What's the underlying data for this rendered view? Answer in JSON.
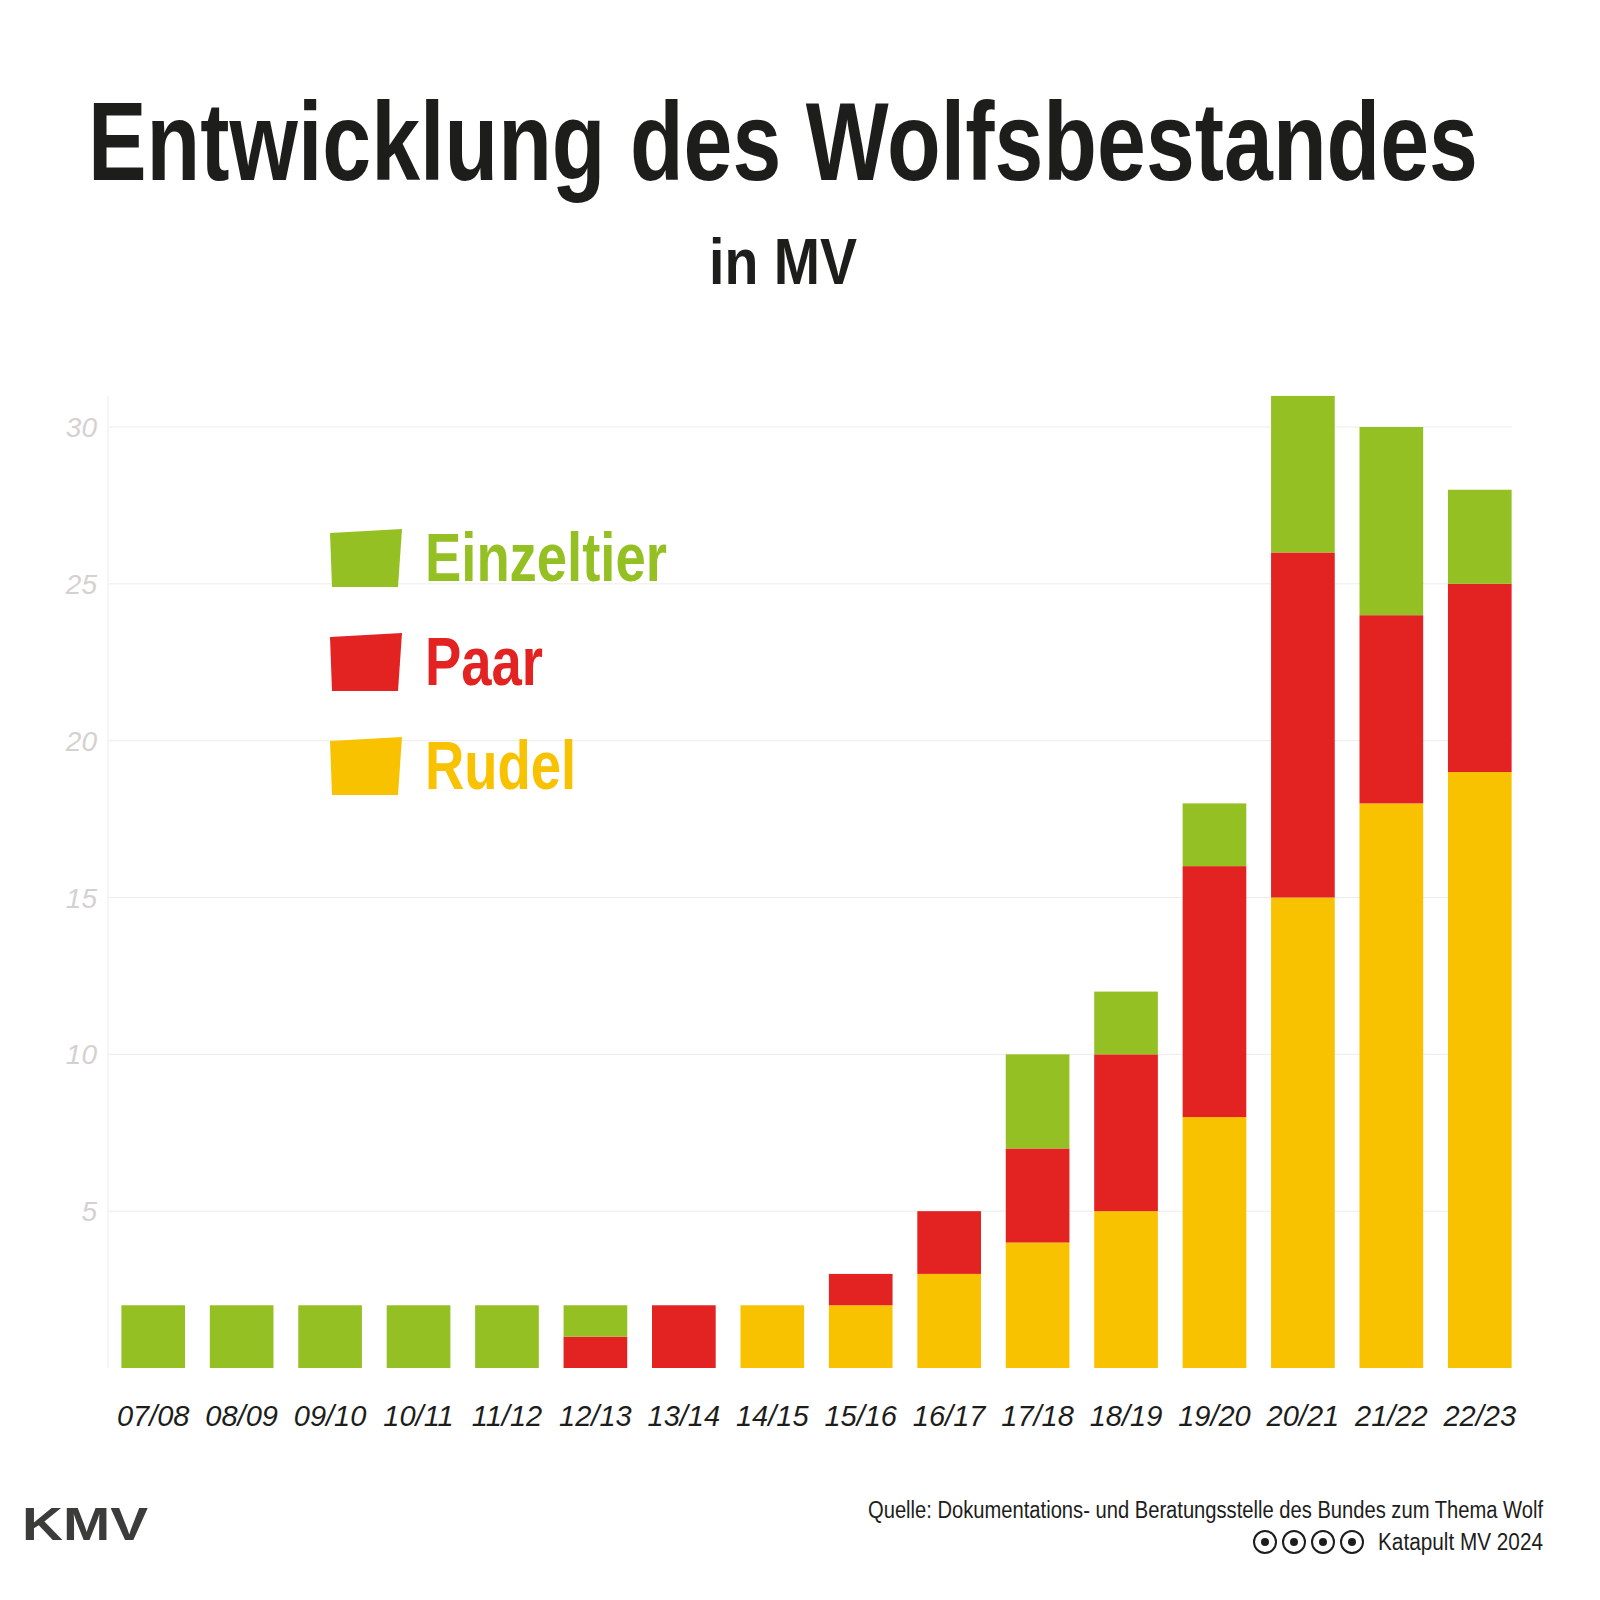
{
  "chart_data": {
    "type": "bar",
    "title": "Entwicklung des Wolfsbestandes",
    "subtitle": "in MV",
    "categories": [
      "07/08",
      "08/09",
      "09/10",
      "10/11",
      "11/12",
      "12/13",
      "13/14",
      "14/15",
      "15/16",
      "16/17",
      "17/18",
      "18/19",
      "19/20",
      "20/21",
      "21/22",
      "22/23"
    ],
    "series": [
      {
        "name": "Rudel",
        "color": "#f9c200",
        "values": [
          0,
          0,
          0,
          0,
          0,
          0,
          0,
          2,
          2,
          3,
          4,
          5,
          8,
          15,
          18,
          19
        ]
      },
      {
        "name": "Paar",
        "color": "#e32222",
        "values": [
          0,
          0,
          0,
          0,
          0,
          1,
          2,
          0,
          1,
          2,
          3,
          5,
          8,
          11,
          6,
          6
        ]
      },
      {
        "name": "Einzeltier",
        "color": "#95c023",
        "values": [
          2,
          2,
          2,
          2,
          2,
          1,
          0,
          0,
          0,
          0,
          3,
          2,
          2,
          5,
          6,
          3
        ]
      }
    ],
    "ylim": [
      0,
      31
    ],
    "yticks": [
      5,
      10,
      15,
      20,
      25,
      30
    ],
    "grid": true,
    "stacked": true,
    "legend": "top-left",
    "source": "Quelle: Dokumentations- und Beratungsstelle des Bundes zum Thema Wolf",
    "credit": "Katapult MV 2024",
    "logo": "KMV"
  }
}
